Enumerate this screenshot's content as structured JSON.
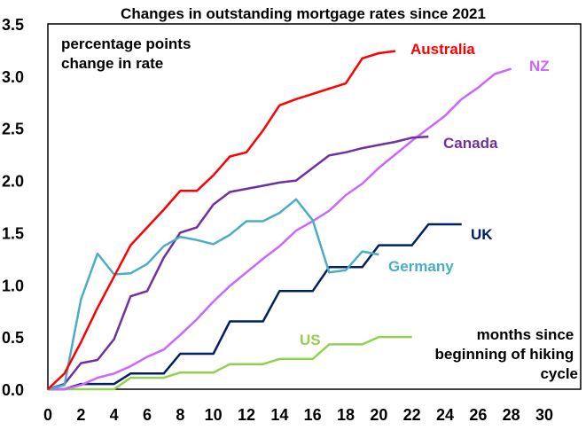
{
  "chart_data": {
    "type": "line",
    "title": "Changes in outstanding mortgage rates since 2021",
    "ylabel": "percentage points change in rate",
    "ylabel_lines": [
      "percentage points",
      "change in rate"
    ],
    "xlabel": "months since beginning of hiking cycle",
    "xlabel_lines": [
      "months since",
      "beginning of hiking",
      "cycle"
    ],
    "xlim": [
      0,
      30
    ],
    "ylim": [
      0,
      3.5
    ],
    "x_ticks": [
      "0",
      "2",
      "4",
      "6",
      "8",
      "10",
      "12",
      "14",
      "16",
      "18",
      "20",
      "22",
      "24",
      "26",
      "28",
      "30"
    ],
    "y_ticks": [
      "0.0",
      "0.5",
      "1.0",
      "1.5",
      "2.0",
      "2.5",
      "3.0",
      "3.5"
    ],
    "grid": false,
    "legend": "inline labels at line ends",
    "series": [
      {
        "name": "Australia",
        "color": "#ff0000",
        "x": [
          0,
          1,
          2,
          3,
          4,
          5,
          6,
          7,
          8,
          9,
          10,
          11,
          12,
          13,
          14,
          15,
          16,
          17,
          18,
          19,
          20,
          21
        ],
        "values": [
          0,
          0.15,
          0.45,
          0.78,
          1.08,
          1.38,
          1.55,
          1.72,
          1.9,
          1.9,
          2.05,
          2.23,
          2.27,
          2.48,
          2.72,
          2.78,
          2.83,
          2.88,
          2.93,
          3.17,
          3.22,
          3.24
        ]
      },
      {
        "name": "NZ",
        "color": "#cc66ff",
        "x": [
          0,
          1,
          2,
          3,
          4,
          5,
          6,
          7,
          8,
          9,
          10,
          11,
          12,
          13,
          14,
          15,
          16,
          17,
          18,
          19,
          20,
          21,
          22,
          23,
          24,
          25,
          26,
          27,
          28
        ],
        "values": [
          0,
          0,
          0.04,
          0.11,
          0.15,
          0.22,
          0.31,
          0.38,
          0.52,
          0.67,
          0.84,
          0.99,
          1.12,
          1.25,
          1.37,
          1.52,
          1.61,
          1.71,
          1.86,
          1.97,
          2.12,
          2.25,
          2.38,
          2.5,
          2.62,
          2.78,
          2.89,
          3.02,
          3.07
        ]
      },
      {
        "name": "Canada",
        "color": "#7030a0",
        "x": [
          0,
          1,
          2,
          3,
          4,
          5,
          6,
          7,
          8,
          9,
          10,
          11,
          12,
          13,
          14,
          15,
          16,
          17,
          18,
          19,
          20,
          21,
          22,
          23
        ],
        "values": [
          0,
          0.05,
          0.25,
          0.28,
          0.48,
          0.89,
          0.94,
          1.26,
          1.5,
          1.55,
          1.77,
          1.89,
          1.92,
          1.95,
          1.98,
          2.0,
          2.12,
          2.24,
          2.27,
          2.31,
          2.34,
          2.37,
          2.41,
          2.42
        ]
      },
      {
        "name": "Germany",
        "color": "#4bacc6",
        "x": [
          0,
          1,
          2,
          3,
          4,
          5,
          6,
          7,
          8,
          9,
          10,
          11,
          12,
          13,
          14,
          15,
          16,
          17,
          18,
          19,
          20
        ],
        "values": [
          0,
          0.04,
          0.86,
          1.3,
          1.1,
          1.11,
          1.2,
          1.37,
          1.46,
          1.43,
          1.39,
          1.48,
          1.61,
          1.61,
          1.69,
          1.82,
          1.62,
          1.12,
          1.14,
          1.32,
          1.29
        ]
      },
      {
        "name": "UK",
        "color": "#002060",
        "x": [
          0,
          1,
          2,
          3,
          4,
          5,
          6,
          7,
          8,
          9,
          10,
          11,
          12,
          13,
          14,
          15,
          16,
          17,
          18,
          19,
          20,
          21,
          22,
          23,
          24,
          25
        ],
        "values": [
          0,
          0,
          0.05,
          0.05,
          0.05,
          0.15,
          0.15,
          0.15,
          0.34,
          0.34,
          0.34,
          0.65,
          0.65,
          0.65,
          0.94,
          0.94,
          0.94,
          1.17,
          1.17,
          1.17,
          1.38,
          1.38,
          1.38,
          1.58,
          1.58,
          1.58
        ]
      },
      {
        "name": "US",
        "color": "#92d050",
        "x": [
          0,
          1,
          2,
          3,
          4,
          5,
          6,
          7,
          8,
          9,
          10,
          11,
          12,
          13,
          14,
          15,
          16,
          17,
          18,
          19,
          20,
          21,
          22
        ],
        "values": [
          0,
          0,
          0,
          0,
          0,
          0.11,
          0.11,
          0.11,
          0.16,
          0.16,
          0.16,
          0.24,
          0.24,
          0.24,
          0.29,
          0.29,
          0.29,
          0.43,
          0.43,
          0.43,
          0.5,
          0.5,
          0.5
        ]
      }
    ]
  }
}
